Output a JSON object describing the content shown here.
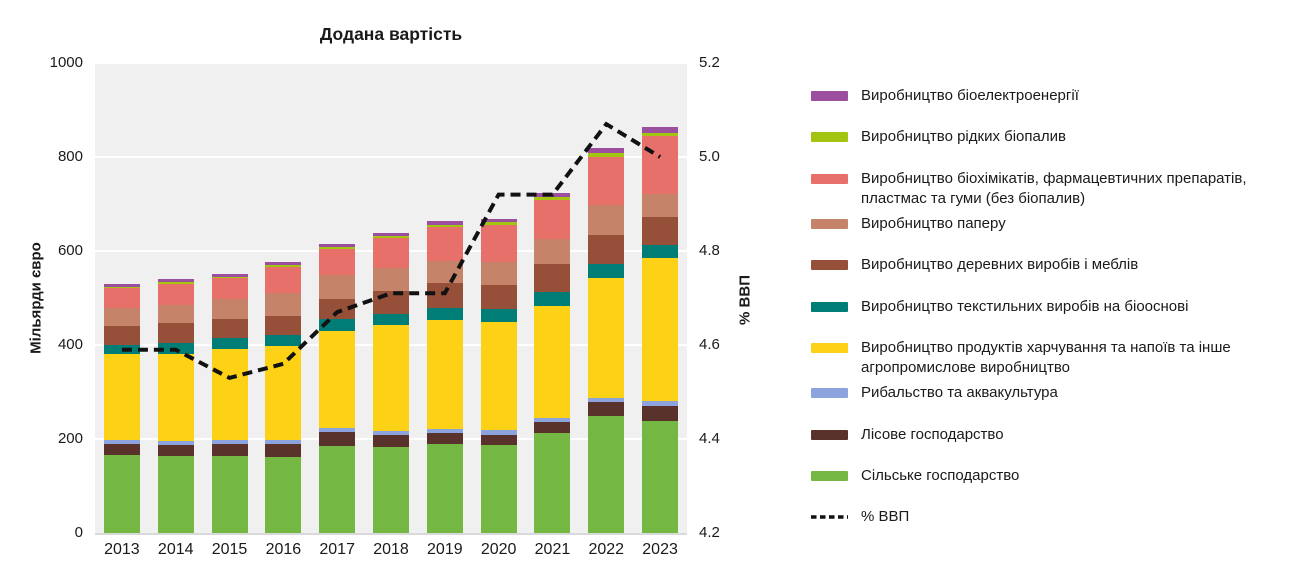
{
  "title": "Додана вартість",
  "left_axis": {
    "label": "Мільярди євро",
    "ticks": [
      "1000",
      "800",
      "600",
      "400",
      "200",
      "0"
    ]
  },
  "right_axis": {
    "label": "% ВВП",
    "ticks": [
      "5.2",
      "5.0",
      "4.8",
      "4.6",
      "4.4",
      "4.2"
    ]
  },
  "colors": {
    "plot_background": "#f0f0f0",
    "gridline": "#ffffff",
    "gdp_line": "#111111"
  },
  "chart_data": {
    "type": "bar",
    "subtype": "stacked-with-line",
    "title": "Додана вартість",
    "xlabel": "",
    "ylabel_left": "Мільярди євро",
    "ylabel_right": "% ВВП",
    "ylim_left": [
      0,
      1000
    ],
    "ylim_right": [
      4.2,
      5.2
    ],
    "grid": true,
    "legend_position": "right",
    "categories": [
      "2013",
      "2014",
      "2015",
      "2016",
      "2017",
      "2018",
      "2019",
      "2020",
      "2021",
      "2022",
      "2023"
    ],
    "series": [
      {
        "key": "agriculture",
        "name": "Сільське господарство",
        "color": "#74b843",
        "values": [
          166,
          164,
          164,
          162,
          186,
          182,
          189,
          187,
          213,
          249,
          239
        ]
      },
      {
        "key": "forestry",
        "name": "Лісове господарство",
        "color": "#59322b",
        "values": [
          23,
          23,
          25,
          27,
          28,
          27,
          23,
          21,
          23,
          30,
          31
        ]
      },
      {
        "key": "fishing",
        "name": "Рибальство та аквакультура",
        "color": "#8ca3dd",
        "values": [
          8,
          9,
          8,
          10,
          9,
          9,
          9,
          11,
          9,
          9,
          11
        ]
      },
      {
        "key": "food",
        "name": "Виробництво продуктів харчування та напоїв та інше агропромислове виробництво",
        "color": "#fdd116",
        "values": [
          183,
          186,
          195,
          198,
          207,
          225,
          232,
          230,
          239,
          255,
          305
        ]
      },
      {
        "key": "textile",
        "name": "Виробництво текстильних виробів на біооснові",
        "color": "#007d74",
        "values": [
          20,
          22,
          23,
          25,
          25,
          23,
          25,
          27,
          28,
          30,
          26
        ]
      },
      {
        "key": "wood",
        "name": "Виробництво деревних виробів і меблів",
        "color": "#96503a",
        "values": [
          40,
          42,
          41,
          39,
          43,
          48,
          53,
          51,
          60,
          62,
          60
        ]
      },
      {
        "key": "paper",
        "name": "Виробництво паперу",
        "color": "#c5846a",
        "values": [
          39,
          39,
          42,
          50,
          50,
          50,
          47,
          50,
          53,
          64,
          50
        ]
      },
      {
        "key": "biochem",
        "name": "Виробництво біохімікатів, фармацевтичних препаратів, пластмас та гуми (без біопалив)",
        "color": "#e8706a",
        "values": [
          43,
          46,
          44,
          55,
          57,
          63,
          73,
          78,
          83,
          102,
          123
        ]
      },
      {
        "key": "biofuel",
        "name": "Виробництво рідких біопалив",
        "color": "#a3c511",
        "values": [
          2,
          3,
          3,
          5,
          3,
          4,
          5,
          6,
          7,
          7,
          6
        ]
      },
      {
        "key": "bioelectricity",
        "name": "Виробництво біоелектроенергії",
        "color": "#9c4f9f",
        "values": [
          6,
          6,
          7,
          5,
          6,
          7,
          7,
          7,
          8,
          12,
          14
        ]
      }
    ],
    "line_series": {
      "key": "gdp",
      "name": "% ВВП",
      "axis": "right",
      "style": "dashed",
      "color": "#111111",
      "values": [
        4.59,
        4.59,
        4.53,
        4.56,
        4.67,
        4.71,
        4.71,
        4.92,
        4.92,
        5.07,
        5.0
      ]
    }
  },
  "legend": {
    "order": [
      "bioelectricity",
      "biofuel",
      "biochem",
      "paper",
      "wood",
      "textile",
      "food",
      "fishing",
      "forestry",
      "agriculture",
      "gdp"
    ]
  }
}
